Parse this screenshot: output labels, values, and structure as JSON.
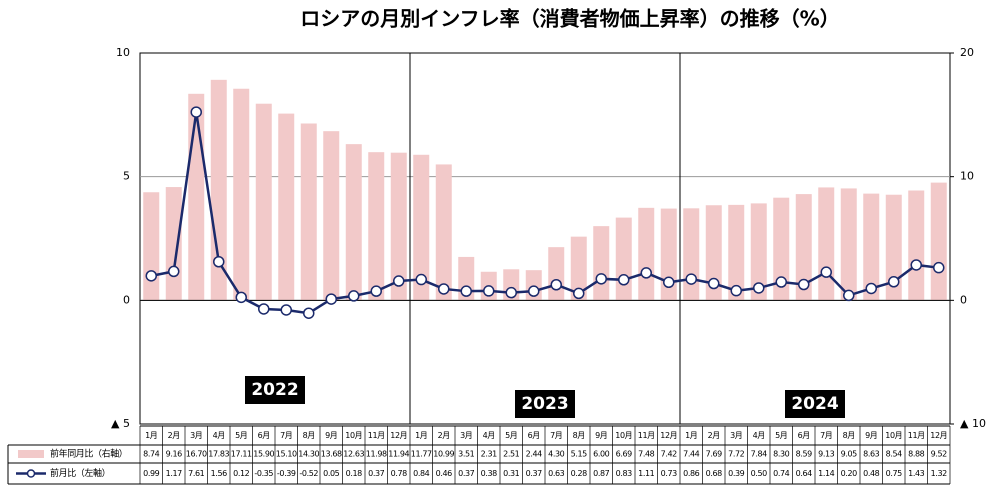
{
  "chart_data": {
    "type": "bar_line",
    "title": "ロシアの月別インフレ率（消費者物価上昇率）の推移（%）",
    "categories": [
      "1月",
      "2月",
      "3月",
      "4月",
      "5月",
      "6月",
      "7月",
      "8月",
      "9月",
      "10月",
      "11月",
      "12月",
      "1月",
      "2月",
      "3月",
      "4月",
      "5月",
      "6月",
      "7月",
      "8月",
      "9月",
      "10月",
      "11月",
      "12月",
      "1月",
      "2月",
      "3月",
      "4月",
      "5月",
      "6月",
      "7月",
      "8月",
      "9月",
      "10月",
      "11月",
      "12月"
    ],
    "year_labels": [
      "2022",
      "2023",
      "2024"
    ],
    "series": [
      {
        "name": "前年同月比（右軸）",
        "type": "bar",
        "axis": "y2",
        "color": "#f2c9c9",
        "values": [
          8.74,
          9.16,
          16.7,
          17.83,
          17.11,
          15.9,
          15.1,
          14.3,
          13.68,
          12.63,
          11.98,
          11.94,
          11.77,
          10.99,
          3.51,
          2.31,
          2.51,
          2.44,
          4.3,
          5.15,
          6.0,
          6.69,
          7.48,
          7.42,
          7.44,
          7.69,
          7.72,
          7.84,
          8.3,
          8.59,
          9.13,
          9.05,
          8.63,
          8.54,
          8.88,
          9.52
        ],
        "value_labels": [
          "8.74",
          "9.16",
          "16.70",
          "17.83",
          "17.11",
          "15.90",
          "15.10",
          "14.30",
          "13.68",
          "12.63",
          "11.98",
          "11.94",
          "11.77",
          "10.99",
          "3.51",
          "2.31",
          "2.51",
          "2.44",
          "4.30",
          "5.15",
          "6.00",
          "6.69",
          "7.48",
          "7.42",
          "7.44",
          "7.69",
          "7.72",
          "7.84",
          "8.30",
          "8.59",
          "9.13",
          "9.05",
          "8.63",
          "8.54",
          "8.88",
          "9.52"
        ]
      },
      {
        "name": "前月比（左軸）",
        "type": "line",
        "axis": "y",
        "color": "#1b2a6b",
        "values": [
          0.99,
          1.17,
          7.61,
          1.56,
          0.12,
          -0.35,
          -0.39,
          -0.52,
          0.05,
          0.18,
          0.37,
          0.78,
          0.84,
          0.46,
          0.37,
          0.38,
          0.31,
          0.37,
          0.63,
          0.28,
          0.87,
          0.83,
          1.11,
          0.73,
          0.86,
          0.68,
          0.39,
          0.5,
          0.74,
          0.64,
          1.14,
          0.2,
          0.48,
          0.75,
          1.43,
          1.32
        ],
        "value_labels": [
          "0.99",
          "1.17",
          "7.61",
          "1.56",
          "0.12",
          "-0.35",
          "-0.39",
          "-0.52",
          "0.05",
          "0.18",
          "0.37",
          "0.78",
          "0.84",
          "0.46",
          "0.37",
          "0.38",
          "0.31",
          "0.37",
          "0.63",
          "0.28",
          "0.87",
          "0.83",
          "1.11",
          "0.73",
          "0.86",
          "0.68",
          "0.39",
          "0.50",
          "0.74",
          "0.64",
          "1.14",
          "0.20",
          "0.48",
          "0.75",
          "1.43",
          "1.32"
        ]
      }
    ],
    "ylim": [
      -5,
      10
    ],
    "yticks": [
      {
        "value": -5,
        "label": "▲ 5"
      },
      0,
      5,
      10
    ],
    "y2lim": [
      -10,
      20
    ],
    "y2ticks": [
      {
        "value": -10,
        "label": "▲ 10"
      },
      0,
      10,
      20
    ],
    "grid": true
  }
}
